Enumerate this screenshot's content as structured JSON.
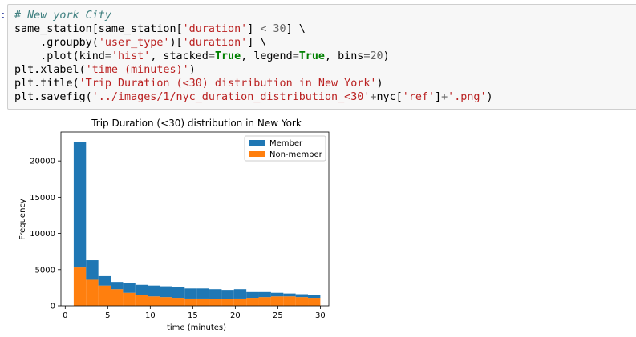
{
  "cell": {
    "prompt": ":",
    "code": {
      "line1": {
        "comment": "# New york City"
      },
      "line2": {
        "t1": "same_station[same_station[",
        "s1": "'duration'",
        "t2": "] ",
        "op": "<",
        "t3": " ",
        "n1": "30",
        "t4": "] \\"
      },
      "line3": {
        "t1": "    .groupby(",
        "s1": "'user_type'",
        "t2": ")[",
        "s2": "'duration'",
        "t3": "] \\"
      },
      "line4": {
        "t1": "    .plot(kind",
        "o1": "=",
        "s1": "'hist'",
        "t2": ", stacked",
        "o2": "=",
        "k1": "True",
        "t3": ", legend",
        "o3": "=",
        "k2": "True",
        "t4": ", bins",
        "o4": "=",
        "n1": "20",
        "t5": ")"
      },
      "line5": {
        "t1": "plt.xlabel(",
        "s1": "'time (minutes)'",
        "t2": ")"
      },
      "line6": {
        "t1": "plt.title(",
        "s1": "'Trip Duration (<30) distribution in New York'",
        "t2": ")"
      },
      "line7": {
        "t1": "plt.savefig(",
        "s1": "'../images/1/nyc_duration_distribution_<30'",
        "o1": "+",
        "t2": "nyc[",
        "s2": "'ref'",
        "t3": "]",
        "o2": "+",
        "s3": "'.png'",
        "t4": ")"
      }
    }
  },
  "chart_data": {
    "type": "bar",
    "title": "Trip Duration (<30) distribution in New York",
    "xlabel": "time (minutes)",
    "ylabel": "Frequency",
    "xlim": [
      -0.5,
      31
    ],
    "ylim": [
      0,
      24000
    ],
    "xticks": [
      0,
      5,
      10,
      15,
      20,
      25,
      30
    ],
    "yticks": [
      0,
      5000,
      10000,
      15000,
      20000
    ],
    "stacked": true,
    "bins": 20,
    "bin_range": [
      1,
      30
    ],
    "legend_position": "upper right",
    "series": [
      {
        "name": "Non-member",
        "color": "#ff7f0e",
        "values": [
          5300,
          3600,
          2800,
          2300,
          1800,
          1500,
          1300,
          1200,
          1100,
          1000,
          1000,
          900,
          900,
          1000,
          1100,
          1200,
          1300,
          1300,
          1200,
          1100
        ]
      },
      {
        "name": "Member",
        "color": "#1f77b4",
        "values": [
          17300,
          2700,
          1300,
          1000,
          1300,
          1400,
          1500,
          1500,
          1500,
          1400,
          1400,
          1400,
          1300,
          1300,
          800,
          700,
          500,
          400,
          400,
          400
        ]
      }
    ],
    "legend": [
      "Member",
      "Non-member"
    ]
  }
}
